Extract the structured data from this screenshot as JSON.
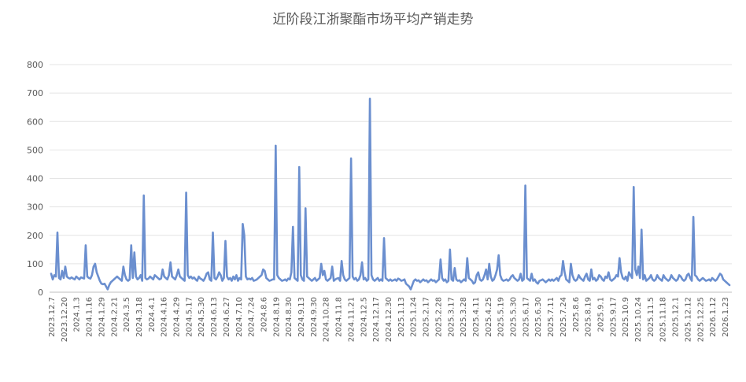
{
  "chart_data": {
    "type": "line",
    "title": "近阶段江浙聚酯市场平均产销走势",
    "xlabel": "",
    "ylabel": "",
    "ylim": [
      0,
      800
    ],
    "yticks": [
      0,
      100,
      200,
      300,
      400,
      500,
      600,
      700,
      800
    ],
    "grid": "horizontal",
    "legend": "none",
    "line_color": "#6b8fcf",
    "x_tick_labels": [
      "2023.12.7",
      "2023.12.20",
      "2024.1.3",
      "2024.1.16",
      "2024.1.29",
      "2024.2.21",
      "2024.3.5",
      "2024.3.18",
      "2024.4.1",
      "2024.4.16",
      "2024.4.29",
      "2024.5.17",
      "2024.5.30",
      "2024.6.13",
      "2024.6.27",
      "2024.7.10",
      "2024.7.24",
      "2024.8.6",
      "2024.8.19",
      "2024.8.30",
      "2024.9.13",
      "2024.9.30",
      "2024.10.28",
      "2024.11.8",
      "2024.11.21",
      "2024.12.5",
      "2024.12.17",
      "2024.12.30",
      "2025.1.13",
      "2025.1.24",
      "2025.2.17",
      "2025.2.28",
      "2025.3.17",
      "2025.3.28",
      "2025.4.11",
      "2025.4.25",
      "2025.5.19",
      "2025.5.30",
      "2025.6.17",
      "2025.6.30",
      "2025.7.11",
      "2025.7.24",
      "2025.8.6",
      "2025.8.19",
      "2025.9.1",
      "2025.9.17",
      "2025.10.9",
      "2025.10.24",
      "2025.11.5",
      "2025.11.18",
      "2025.12.1",
      "2025.12.12",
      "2025.12.25",
      "2026.1.12",
      "2026.1.23"
    ],
    "series": [
      {
        "values": [
          65,
          45,
          60,
          55,
          210,
          50,
          45,
          75,
          50,
          90,
          55,
          50,
          48,
          52,
          48,
          45,
          55,
          50,
          45,
          52,
          50,
          48,
          165,
          55,
          50,
          48,
          60,
          90,
          100,
          70,
          55,
          40,
          30,
          28,
          30,
          20,
          10,
          25,
          35,
          40,
          45,
          50,
          55,
          50,
          45,
          40,
          90,
          60,
          45,
          40,
          45,
          165,
          50,
          140,
          55,
          45,
          50,
          60,
          40,
          340,
          50,
          45,
          48,
          55,
          50,
          45,
          60,
          55,
          50,
          45,
          48,
          80,
          55,
          50,
          45,
          60,
          105,
          55,
          50,
          45,
          60,
          80,
          55,
          50,
          45,
          40,
          350,
          60,
          50,
          55,
          48,
          52,
          45,
          40,
          55,
          48,
          45,
          40,
          50,
          65,
          70,
          45,
          40,
          210,
          50,
          45,
          55,
          70,
          60,
          40,
          50,
          180,
          55,
          45,
          50,
          40,
          55,
          45,
          60,
          40,
          50,
          45,
          240,
          200,
          55,
          45,
          48,
          45,
          50,
          40,
          42,
          45,
          50,
          55,
          60,
          80,
          75,
          50,
          45,
          40,
          42,
          45,
          45,
          515,
          60,
          50,
          45,
          40,
          42,
          45,
          40,
          48,
          45,
          70,
          230,
          50,
          45,
          40,
          440,
          60,
          45,
          40,
          295,
          55,
          50,
          45,
          40,
          45,
          50,
          40,
          45,
          50,
          100,
          60,
          75,
          45,
          40,
          45,
          50,
          90,
          40,
          45,
          48,
          50,
          40,
          110,
          60,
          45,
          40,
          45,
          50,
          470,
          55,
          45,
          50,
          40,
          45,
          60,
          105,
          45,
          50,
          40,
          45,
          680,
          60,
          45,
          40,
          45,
          50,
          40,
          45,
          40,
          190,
          50,
          45,
          40,
          45,
          40,
          42,
          45,
          40,
          48,
          45,
          40,
          42,
          45,
          30,
          25,
          20,
          10,
          25,
          40,
          45,
          40,
          42,
          35,
          40,
          45,
          40,
          42,
          35,
          40,
          45,
          40,
          42,
          35,
          40,
          45,
          115,
          50,
          40,
          45,
          35,
          40,
          150,
          45,
          40,
          85,
          45,
          40,
          42,
          35,
          40,
          45,
          40,
          120,
          50,
          45,
          40,
          30,
          35,
          60,
          70,
          45,
          40,
          45,
          60,
          80,
          45,
          100,
          55,
          40,
          45,
          60,
          80,
          130,
          60,
          45,
          40,
          42,
          45,
          40,
          45,
          55,
          60,
          50,
          45,
          40,
          45,
          65,
          40,
          45,
          375,
          50,
          45,
          40,
          65,
          40,
          45,
          35,
          30,
          40,
          42,
          45,
          40,
          35,
          40,
          45,
          40,
          45,
          40,
          45,
          50,
          40,
          55,
          60,
          110,
          70,
          45,
          40,
          35,
          100,
          60,
          45,
          40,
          45,
          60,
          50,
          45,
          40,
          55,
          65,
          45,
          40,
          80,
          45,
          50,
          40,
          45,
          60,
          55,
          45,
          40,
          55,
          50,
          70,
          45,
          40,
          45,
          50,
          60,
          55,
          120,
          70,
          50,
          45,
          55,
          40,
          70,
          60,
          50,
          370,
          80,
          60,
          90,
          50,
          220,
          45,
          60,
          40,
          45,
          50,
          60,
          45,
          40,
          45,
          60,
          50,
          45,
          40,
          60,
          50,
          45,
          40,
          45,
          60,
          50,
          45,
          40,
          45,
          60,
          55,
          45,
          40,
          45,
          60,
          65,
          50,
          40,
          265,
          60,
          55,
          45,
          40,
          45,
          50,
          45,
          40,
          42,
          45,
          40,
          50,
          45,
          40,
          45,
          55,
          65,
          60,
          45,
          40,
          35,
          30,
          25
        ]
      }
    ]
  }
}
